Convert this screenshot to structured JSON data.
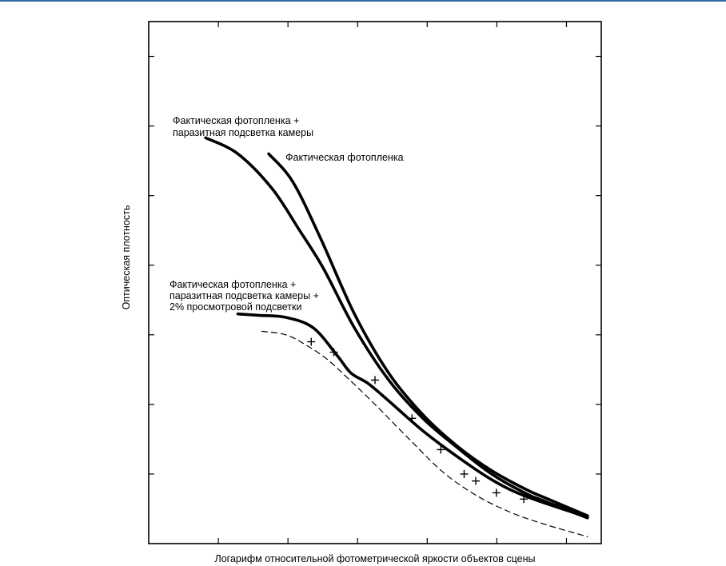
{
  "chart_data": {
    "type": "line",
    "title": "",
    "xlabel": "Логарифм относительной фотометрической яркости объектов сцены",
    "ylabel": "Оптическая плотность",
    "xlim": [
      0,
      6.6
    ],
    "ylim": [
      0,
      7.5
    ],
    "x_ticks": 6,
    "y_ticks": 7,
    "grid": false,
    "series": [
      {
        "name": "Фактическая фотопленка + паразитная подсветка камеры",
        "style": "solid-thick",
        "x": [
          0.83,
          1.3,
          1.8,
          2.2,
          2.55,
          3.0,
          3.5,
          4.0,
          4.5,
          5.0,
          5.5,
          5.8,
          6.4
        ],
        "y": [
          5.83,
          5.6,
          5.1,
          4.5,
          3.95,
          3.1,
          2.35,
          1.8,
          1.38,
          1.0,
          0.72,
          0.6,
          0.37
        ]
      },
      {
        "name": "Фактическая фотопленка",
        "style": "solid-thick",
        "x": [
          1.75,
          2.1,
          2.5,
          3.0,
          3.5,
          4.0,
          4.5,
          5.0,
          5.5,
          5.8,
          6.4
        ],
        "y": [
          5.6,
          5.2,
          4.4,
          3.3,
          2.45,
          1.85,
          1.4,
          1.05,
          0.78,
          0.65,
          0.4
        ]
      },
      {
        "name": "Фактическая фотопленка + паразитная подсветка камеры + 2% просмотровой подсветки",
        "style": "solid-thick",
        "x": [
          1.3,
          1.6,
          2.0,
          2.4,
          2.75,
          2.95,
          3.2,
          3.5,
          4.0,
          4.5,
          5.0,
          5.5,
          6.4
        ],
        "y": [
          3.3,
          3.28,
          3.25,
          3.1,
          2.7,
          2.45,
          2.3,
          2.05,
          1.62,
          1.25,
          0.92,
          0.68,
          0.38
        ]
      },
      {
        "name": "",
        "style": "dashed",
        "x": [
          1.65,
          2.0,
          2.3,
          2.6,
          2.9,
          3.3,
          3.8,
          4.3,
          4.8,
          5.3,
          5.8,
          6.4
        ],
        "y": [
          3.05,
          3.0,
          2.85,
          2.65,
          2.38,
          2.0,
          1.5,
          1.02,
          0.68,
          0.44,
          0.27,
          0.1
        ]
      }
    ],
    "markers": {
      "symbol": "+",
      "x": [
        2.37,
        2.7,
        3.3,
        3.84,
        4.26,
        4.6,
        4.77,
        5.07,
        5.47
      ],
      "y": [
        2.9,
        2.75,
        2.35,
        1.8,
        1.35,
        1.0,
        0.9,
        0.73,
        0.64
      ]
    },
    "annotations": [
      {
        "lines": [
          "Фактическая фотопленка +",
          "паразитная подсветка камеры"
        ]
      },
      {
        "lines": [
          "Фактическая фотопленка"
        ]
      },
      {
        "lines": [
          "Фактическая фотопленка +",
          "паразитная подсветка камеры +",
          "2% просмотровой подсветки"
        ]
      }
    ]
  }
}
